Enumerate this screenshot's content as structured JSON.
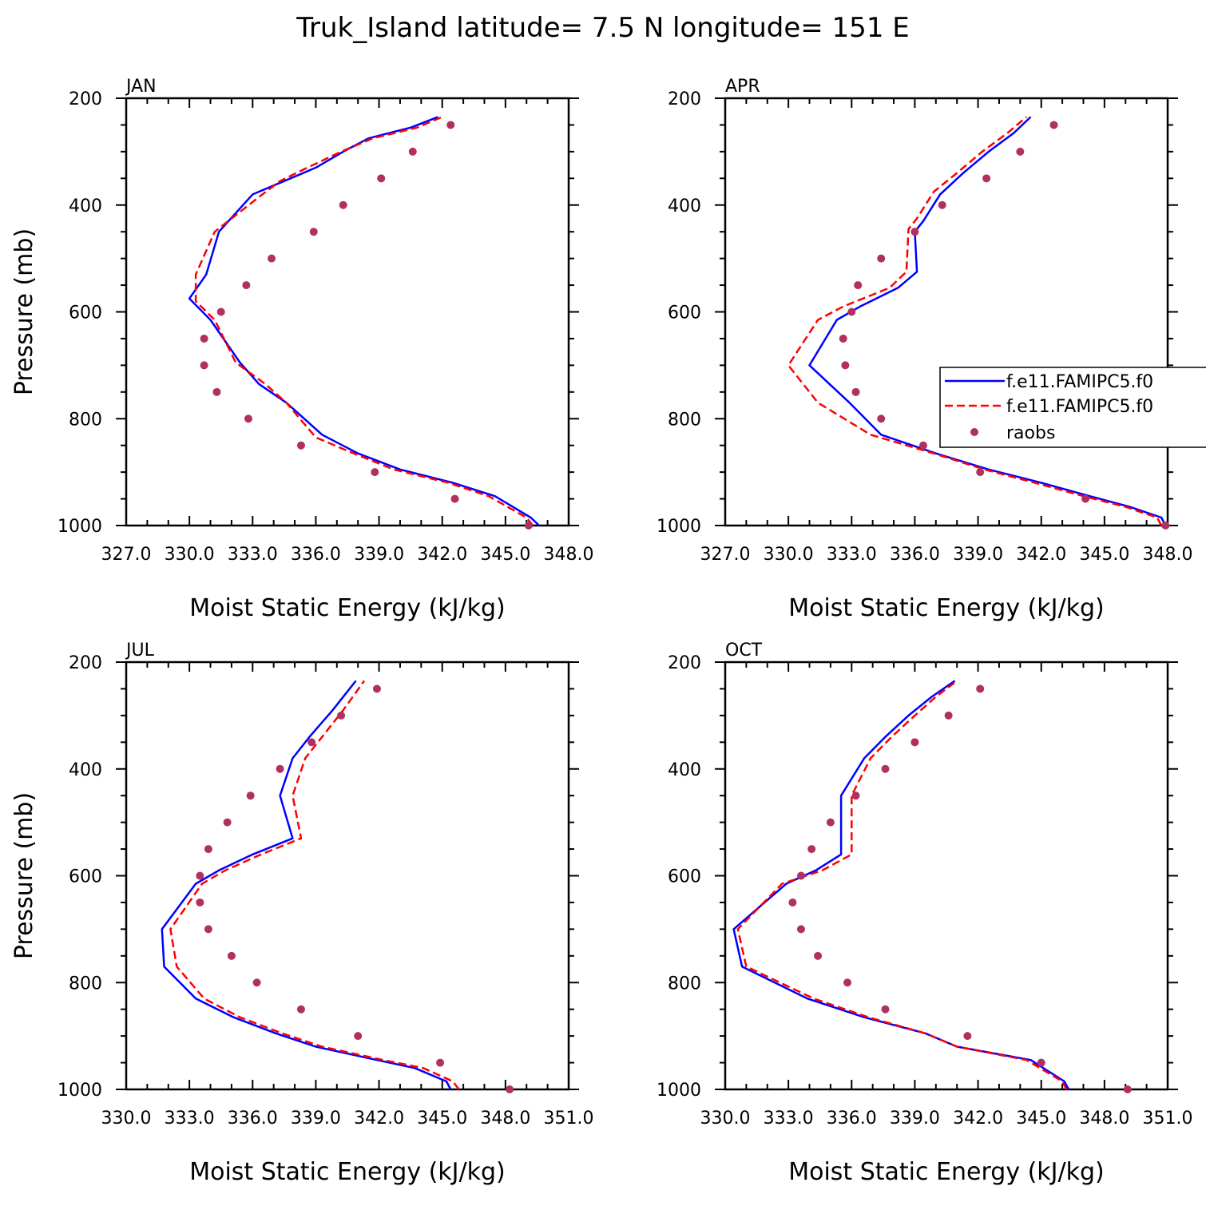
{
  "figure": {
    "title": "Truk_Island  latitude= 7.5 N longitude= 151 E"
  },
  "colors": {
    "series1": "#0000ff",
    "series2": "#ff0000",
    "raobs": "#b03060"
  },
  "chart_data": [
    {
      "type": "line",
      "panel": "JAN",
      "title": "JAN",
      "xlabel": "Moist Static Energy (kJ/kg)",
      "ylabel": "Pressure (mb)",
      "xlim": [
        327.0,
        348.0
      ],
      "ylim": [
        1000,
        200
      ],
      "y_reversed": true,
      "xticks": [
        327.0,
        330.0,
        333.0,
        336.0,
        339.0,
        342.0,
        345.0,
        348.0
      ],
      "xtick_labels": [
        "327.0",
        "330.0",
        "333.0",
        "336.0",
        "339.0",
        "342.0",
        "345.0",
        "348.0"
      ],
      "yticks": [
        200,
        400,
        600,
        800,
        1000
      ],
      "ytick_labels": [
        "200",
        "400",
        "600",
        "800",
        "1000"
      ],
      "legend": false,
      "series": [
        {
          "name": "f.e11.FAMIPC5.f0",
          "style": "solid",
          "x": [
            346.6,
            346.2,
            344.5,
            342.5,
            340.0,
            338.0,
            336.3,
            334.6,
            333.3,
            332.4,
            331.0,
            330.0,
            330.8,
            331.4,
            333.0,
            334.8,
            336.0,
            337.3,
            338.5,
            340.5,
            341.8
          ],
          "y": [
            1000,
            985,
            945,
            920,
            895,
            865,
            830,
            770,
            735,
            695,
            615,
            575,
            530,
            450,
            380,
            350,
            330,
            300,
            275,
            255,
            235
          ]
        },
        {
          "name": "f.e11.FAMIPC5.f0",
          "style": "dashed",
          "x": [
            346.3,
            346.0,
            344.2,
            342.3,
            339.7,
            337.8,
            336.0,
            334.6,
            333.6,
            332.2,
            331.2,
            330.3,
            330.3,
            331.2,
            333.3,
            334.3,
            335.6,
            337.2,
            338.7,
            340.8,
            342.0
          ],
          "y": [
            1000,
            985,
            945,
            920,
            895,
            865,
            835,
            770,
            735,
            695,
            615,
            580,
            530,
            450,
            385,
            355,
            330,
            300,
            275,
            255,
            235
          ]
        },
        {
          "name": "raobs",
          "style": "markers",
          "x": [
            346.1,
            342.6,
            338.8,
            335.3,
            332.8,
            331.3,
            330.7,
            330.7,
            331.5,
            332.7,
            333.9,
            335.9,
            337.3,
            339.1,
            340.6,
            342.4
          ],
          "y": [
            1000,
            950,
            900,
            850,
            800,
            750,
            700,
            650,
            600,
            550,
            500,
            450,
            400,
            350,
            300,
            250
          ]
        }
      ]
    },
    {
      "type": "line",
      "panel": "APR",
      "title": "APR",
      "xlabel": "Moist Static Energy (kJ/kg)",
      "ylabel": "",
      "xlim": [
        327.0,
        348.0
      ],
      "ylim": [
        1000,
        200
      ],
      "y_reversed": true,
      "xticks": [
        327.0,
        330.0,
        333.0,
        336.0,
        339.0,
        342.0,
        345.0,
        348.0
      ],
      "xtick_labels": [
        "327.0",
        "330.0",
        "333.0",
        "336.0",
        "339.0",
        "342.0",
        "345.0",
        "348.0"
      ],
      "yticks": [
        200,
        400,
        600,
        800,
        1000
      ],
      "ytick_labels": [
        "200",
        "400",
        "600",
        "800",
        "1000"
      ],
      "legend": true,
      "legend_position": "right",
      "series": [
        {
          "name": "f.e11.FAMIPC5.f0",
          "style": "solid",
          "x": [
            347.9,
            347.7,
            346.2,
            344.3,
            342.0,
            339.5,
            337.0,
            334.4,
            332.9,
            331.0,
            332.3,
            333.4,
            335.2,
            336.1,
            336.0,
            336.4,
            337.2,
            338.3,
            339.5,
            340.7,
            341.5
          ],
          "y": [
            1000,
            985,
            965,
            945,
            920,
            895,
            865,
            830,
            770,
            700,
            615,
            590,
            555,
            525,
            450,
            430,
            380,
            340,
            300,
            265,
            235
          ]
        },
        {
          "name": "f.e11.FAMIPC5.f0",
          "style": "dashed",
          "x": [
            347.7,
            347.5,
            346.0,
            344.0,
            341.7,
            339.3,
            336.9,
            333.9,
            331.4,
            330.0,
            331.4,
            332.6,
            334.8,
            335.6,
            335.7,
            336.1,
            336.9,
            338.0,
            339.2,
            340.4,
            341.3
          ],
          "y": [
            1000,
            985,
            965,
            945,
            920,
            895,
            865,
            830,
            770,
            700,
            615,
            590,
            555,
            525,
            445,
            425,
            375,
            340,
            300,
            265,
            235
          ]
        },
        {
          "name": "raobs",
          "style": "markers",
          "x": [
            347.9,
            344.1,
            339.1,
            336.4,
            334.4,
            333.2,
            332.7,
            332.6,
            333.0,
            333.3,
            334.4,
            336.0,
            337.3,
            339.4,
            341.0,
            342.6
          ],
          "y": [
            1000,
            950,
            900,
            850,
            800,
            750,
            700,
            650,
            600,
            550,
            500,
            450,
            400,
            350,
            300,
            250
          ]
        }
      ],
      "legend_entries": [
        "f.e11.FAMIPC5.f0",
        "f.e11.FAMIPC5.f0",
        "raobs"
      ]
    },
    {
      "type": "line",
      "panel": "JUL",
      "title": "JUL",
      "xlabel": "Moist Static Energy (kJ/kg)",
      "ylabel": "Pressure (mb)",
      "xlim": [
        330.0,
        351.0
      ],
      "ylim": [
        1000,
        200
      ],
      "y_reversed": true,
      "xticks": [
        330.0,
        333.0,
        336.0,
        339.0,
        342.0,
        345.0,
        348.0,
        351.0
      ],
      "xtick_labels": [
        "330.0",
        "333.0",
        "336.0",
        "339.0",
        "342.0",
        "345.0",
        "348.0",
        "351.0"
      ],
      "yticks": [
        200,
        400,
        600,
        800,
        1000
      ],
      "ytick_labels": [
        "200",
        "400",
        "600",
        "800",
        "1000"
      ],
      "legend": false,
      "series": [
        {
          "name": "f.e11.FAMIPC5.f0",
          "style": "solid",
          "x": [
            345.4,
            345.2,
            343.7,
            341.9,
            339.0,
            337.1,
            335.1,
            333.3,
            331.8,
            331.7,
            333.3,
            334.4,
            336.0,
            337.9,
            337.3,
            337.9,
            338.7,
            339.8,
            340.9
          ],
          "y": [
            1000,
            985,
            960,
            945,
            920,
            895,
            865,
            830,
            770,
            700,
            615,
            590,
            560,
            530,
            450,
            380,
            340,
            290,
            235
          ]
        },
        {
          "name": "f.e11.FAMIPC5.f0",
          "style": "dashed",
          "x": [
            345.8,
            345.5,
            344.1,
            342.2,
            339.3,
            337.4,
            335.4,
            333.7,
            332.4,
            332.1,
            333.6,
            334.7,
            336.4,
            338.3,
            337.9,
            338.5,
            339.3,
            340.3,
            341.3
          ],
          "y": [
            1000,
            985,
            960,
            945,
            920,
            895,
            865,
            830,
            770,
            700,
            615,
            590,
            560,
            530,
            450,
            380,
            340,
            290,
            235
          ]
        },
        {
          "name": "raobs",
          "style": "markers",
          "x": [
            348.2,
            344.9,
            341.0,
            338.3,
            336.2,
            335.0,
            333.9,
            333.5,
            333.5,
            333.9,
            334.8,
            335.9,
            337.3,
            338.8,
            340.2,
            341.9
          ],
          "y": [
            1000,
            950,
            900,
            850,
            800,
            750,
            700,
            650,
            600,
            550,
            500,
            450,
            400,
            350,
            300,
            250
          ]
        }
      ]
    },
    {
      "type": "line",
      "panel": "OCT",
      "title": "OCT",
      "xlabel": "Moist Static Energy (kJ/kg)",
      "ylabel": "",
      "xlim": [
        330.0,
        351.0
      ],
      "ylim": [
        1000,
        200
      ],
      "y_reversed": true,
      "xticks": [
        330.0,
        333.0,
        336.0,
        339.0,
        342.0,
        345.0,
        348.0,
        351.0
      ],
      "xtick_labels": [
        "330.0",
        "333.0",
        "336.0",
        "339.0",
        "342.0",
        "345.0",
        "348.0",
        "351.0"
      ],
      "yticks": [
        200,
        400,
        600,
        800,
        1000
      ],
      "ytick_labels": [
        "200",
        "400",
        "600",
        "800",
        "1000"
      ],
      "legend": false,
      "series": [
        {
          "name": "f.e11.FAMIPC5.f0",
          "style": "solid",
          "x": [
            346.3,
            346.1,
            344.5,
            341.0,
            339.5,
            336.6,
            333.9,
            330.8,
            330.4,
            332.9,
            334.3,
            335.5,
            335.5,
            336.6,
            337.6,
            338.7,
            339.8,
            340.9
          ],
          "y": [
            1000,
            985,
            945,
            920,
            895,
            865,
            830,
            770,
            700,
            615,
            590,
            560,
            450,
            380,
            340,
            300,
            265,
            235
          ]
        },
        {
          "name": "f.e11.FAMIPC5.f0",
          "style": "dashed",
          "x": [
            346.2,
            346.0,
            344.3,
            341.0,
            339.5,
            336.8,
            334.2,
            331.0,
            330.6,
            332.7,
            334.6,
            336.0,
            336.0,
            336.9,
            337.9,
            339.0,
            340.0,
            341.0
          ],
          "y": [
            1000,
            985,
            945,
            920,
            895,
            865,
            830,
            770,
            700,
            615,
            590,
            560,
            450,
            380,
            340,
            300,
            265,
            235
          ]
        },
        {
          "name": "raobs",
          "style": "markers",
          "x": [
            349.1,
            345.0,
            341.5,
            337.6,
            335.8,
            334.4,
            333.6,
            333.2,
            333.6,
            334.1,
            335.0,
            336.2,
            337.6,
            339.0,
            340.6,
            342.1
          ],
          "y": [
            1000,
            950,
            900,
            850,
            800,
            750,
            700,
            650,
            600,
            550,
            500,
            450,
            400,
            350,
            300,
            250
          ]
        }
      ]
    }
  ]
}
